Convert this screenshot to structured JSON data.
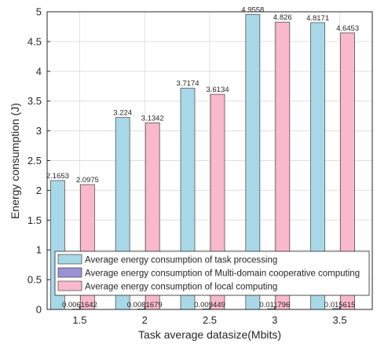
{
  "chart_data": {
    "type": "bar",
    "xlabel": "Task average datasize(Mbits)",
    "ylabel": "Energy consumption (J)",
    "categories": [
      "1.5",
      "2",
      "2.5",
      "3",
      "3.5"
    ],
    "ylim": [
      0,
      5
    ],
    "yticks": [
      "0",
      "0.5",
      "1",
      "1.5",
      "2",
      "2.5",
      "3",
      "3.5",
      "4",
      "4.5",
      "5"
    ],
    "grid": true,
    "legend_position": "bottom",
    "series": [
      {
        "name": "Average energy consumption of task processing",
        "values": [
          2.1653,
          3.224,
          3.7174,
          4.9558,
          4.8171
        ],
        "labels": [
          "2.1653",
          "3.224",
          "3.7174",
          "4.9558",
          "4.8171"
        ],
        "color": "#a8d8e8"
      },
      {
        "name": "Average energy consumption of Multi-domain cooperative computing",
        "values": [
          0.0061642,
          0.0081679,
          0.009449,
          0.011796,
          0.015615
        ],
        "labels": [
          "0.0061642",
          "0.0081679",
          "0.009449",
          "0.011796",
          "0.015615"
        ],
        "color": "#9b8fd6"
      },
      {
        "name": "Average energy consumption of local computing",
        "values": [
          2.0975,
          3.1342,
          3.6134,
          4.826,
          4.6453
        ],
        "labels": [
          "2.0975",
          "3.1342",
          "3.6134",
          "4.826",
          "4.6453"
        ],
        "color": "#f9b8cc"
      }
    ]
  }
}
